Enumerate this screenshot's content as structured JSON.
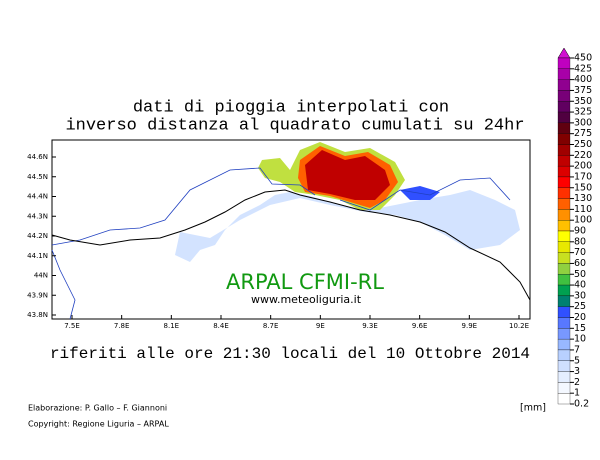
{
  "header": {
    "title_lines": [
      "dati di pioggia interpolati con",
      "inverso distanza al quadrato cumulati su 24hr"
    ]
  },
  "map": {
    "lat_labels": [
      "44.6N",
      "44.5N",
      "44.4N",
      "44.3N",
      "44.2N",
      "44.1N",
      "44N",
      "43.9N",
      "43.8N"
    ],
    "lon_labels": [
      "7.5E",
      "7.8E",
      "8.1E",
      "8.4E",
      "8.7E",
      "9E",
      "9.3E",
      "9.6E",
      "9.9E",
      "10.2E"
    ],
    "watermark": "ARPAL CFMI-RL",
    "website": "www.meteoliguria.it"
  },
  "subtitle": "riferiti alle ore 21:30 locali del 10 Ottobre 2014",
  "colorbar": {
    "unit": "[mm]",
    "levels": [
      {
        "label": "450",
        "color": "#d010d0"
      },
      {
        "label": "425",
        "color": "#c000c0"
      },
      {
        "label": "400",
        "color": "#a800a8"
      },
      {
        "label": "375",
        "color": "#900090"
      },
      {
        "label": "350",
        "color": "#780078"
      },
      {
        "label": "325",
        "color": "#600060"
      },
      {
        "label": "300",
        "color": "#500040"
      },
      {
        "label": "275",
        "color": "#600010"
      },
      {
        "label": "250",
        "color": "#800000"
      },
      {
        "label": "220",
        "color": "#a00000"
      },
      {
        "label": "200",
        "color": "#c00000"
      },
      {
        "label": "170",
        "color": "#dc0000"
      },
      {
        "label": "150",
        "color": "#ff0000"
      },
      {
        "label": "130",
        "color": "#ff3000"
      },
      {
        "label": "110",
        "color": "#ff6000"
      },
      {
        "label": "100",
        "color": "#ff9000"
      },
      {
        "label": "90",
        "color": "#ffc000"
      },
      {
        "label": "80",
        "color": "#ffff00"
      },
      {
        "label": "70",
        "color": "#e8e800"
      },
      {
        "label": "60",
        "color": "#c8e020"
      },
      {
        "label": "50",
        "color": "#90d040"
      },
      {
        "label": "40",
        "color": "#40c040"
      },
      {
        "label": "30",
        "color": "#00a050"
      },
      {
        "label": "25",
        "color": "#008070"
      },
      {
        "label": "20",
        "color": "#3050ff"
      },
      {
        "label": "15",
        "color": "#5878ff"
      },
      {
        "label": "10",
        "color": "#7898ff"
      },
      {
        "label": "7",
        "color": "#98b8ff"
      },
      {
        "label": "5",
        "color": "#b8d0ff"
      },
      {
        "label": "3",
        "color": "#d0e0ff"
      },
      {
        "label": "2",
        "color": "#e4eeff"
      },
      {
        "label": "1",
        "color": "#f4f8ff"
      },
      {
        "label": "0.2",
        "color": "#ffffff"
      }
    ]
  },
  "footer": {
    "credits": "Elaborazione: P. Gallo – F. Giannoni",
    "copyright": "Copyright: Regione Liguria – ARPAL"
  }
}
